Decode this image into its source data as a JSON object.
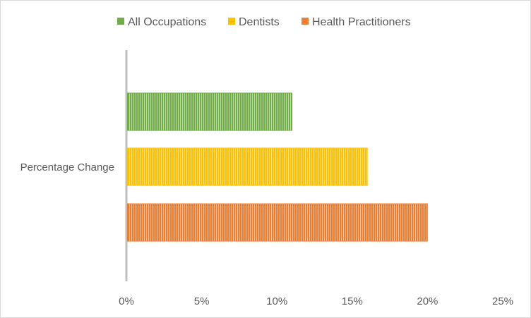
{
  "chart_data": {
    "type": "bar",
    "orientation": "horizontal",
    "categories": [
      "Percentage Change"
    ],
    "series": [
      {
        "name": "All Occupations",
        "values": [
          0.11
        ],
        "color": "#70ad47"
      },
      {
        "name": "Dentists",
        "values": [
          0.16
        ],
        "color": "#ffc000"
      },
      {
        "name": "Health Practitioners",
        "values": [
          0.2
        ],
        "color": "#ed7d31"
      }
    ],
    "xlim": [
      0,
      0.25
    ],
    "x_ticks": [
      "0%",
      "5%",
      "10%",
      "15%",
      "20%",
      "25%"
    ],
    "grid": false,
    "legend_position": "top",
    "bar_pattern": "vertical-stripes"
  }
}
